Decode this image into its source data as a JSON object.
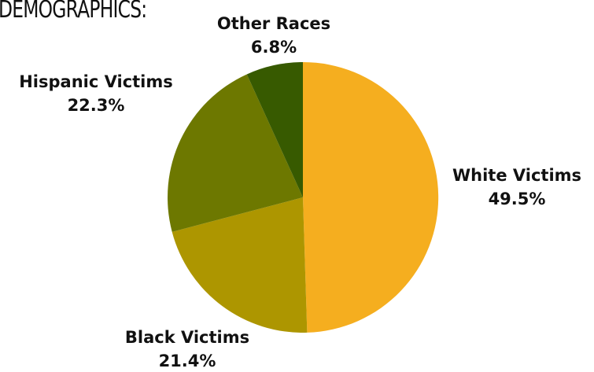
{
  "heading": "DEMOGRAPHICS:",
  "chart_data": {
    "type": "pie",
    "start_angle_deg": 0,
    "direction": "clockwise",
    "slices": [
      {
        "name": "White Victims",
        "value": 49.5,
        "label": "49.5%",
        "color": "#F5AE1F"
      },
      {
        "name": "Black Victims",
        "value": 21.4,
        "label": "21.4%",
        "color": "#AD9600"
      },
      {
        "name": "Hispanic Victims",
        "value": 22.3,
        "label": "22.3%",
        "color": "#6D7800"
      },
      {
        "name": "Other Races",
        "value": 6.8,
        "label": "6.8%",
        "color": "#375A00"
      }
    ]
  }
}
